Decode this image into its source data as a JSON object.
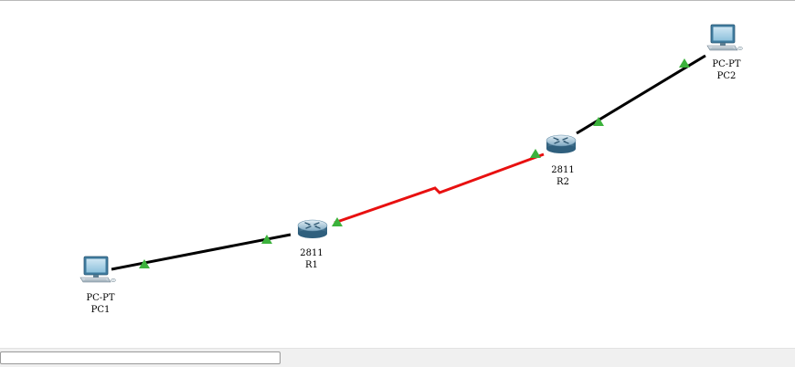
{
  "colors": {
    "ethernet": "#000000",
    "serial": "#e81010",
    "link_up": "#3cb23c",
    "device_body": "#4c8db5"
  },
  "devices": {
    "pc1": {
      "model": "PC-PT",
      "name": "PC1",
      "icon": "pc-icon"
    },
    "pc2": {
      "model": "PC-PT",
      "name": "PC2",
      "icon": "pc-icon"
    },
    "r1": {
      "model": "2811",
      "name": "R1",
      "icon": "router-icon"
    },
    "r2": {
      "model": "2811",
      "name": "R2",
      "icon": "router-icon"
    }
  },
  "links": [
    {
      "from": "PC1",
      "to": "R1",
      "type": "copper-straight-through",
      "status": "up"
    },
    {
      "from": "R1",
      "to": "R2",
      "type": "serial-dce",
      "status": "up"
    },
    {
      "from": "R2",
      "to": "PC2",
      "type": "copper-straight-through",
      "status": "up"
    }
  ]
}
